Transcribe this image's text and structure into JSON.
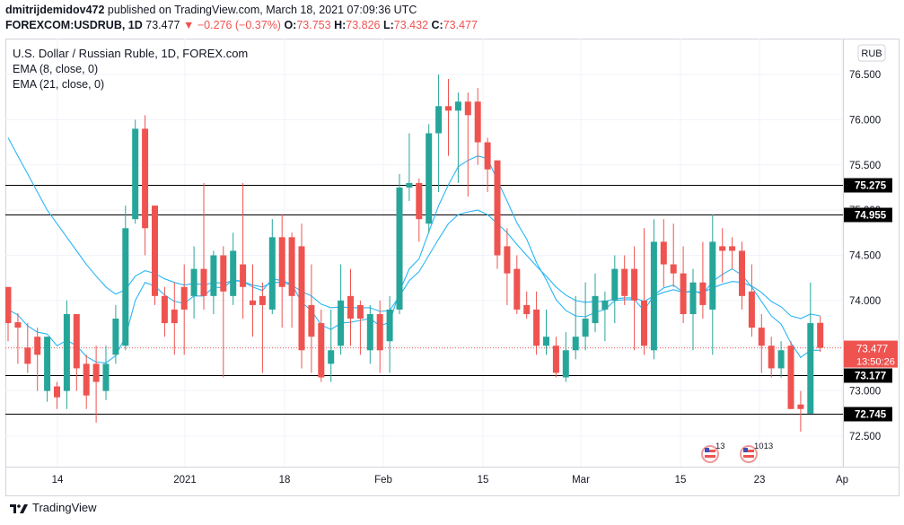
{
  "header": {
    "line1_user": "dmitrijdemidov472",
    "line1_rest": " published on TradingView.com, March 18, 2021 07:09:36 UTC",
    "symbol": "FOREXCOM:USDRUB, 1D",
    "last": "73.477",
    "change": "▼ −0.276 (−0.37%)",
    "o_label": "O:",
    "o_val": "73.753",
    "h_label": "H:",
    "h_val": "73.826",
    "l_label": "L:",
    "l_val": "73.432",
    "c_label": "C:",
    "c_val": "73.477"
  },
  "legend": {
    "title": "U.S. Dollar / Russian Ruble, 1D, FOREX.com",
    "ema8": "EMA (8, close, 0)",
    "ema21": "EMA (21, close, 0)"
  },
  "currency_badge": "RUB",
  "footer": {
    "brand": "TradingView"
  },
  "colors": {
    "up": "#26a69a",
    "down": "#ef5350",
    "ema": "#29b6f6",
    "hline": "#000000"
  },
  "chart_data": {
    "type": "candlestick",
    "title": "U.S. Dollar / Russian Ruble, 1D, FOREX.com",
    "y_ticks": [
      "72.500",
      "73.000",
      "73.500",
      "74.000",
      "74.500",
      "75.000",
      "75.500",
      "76.000",
      "76.500"
    ],
    "x_ticks": [
      "14",
      "2021",
      "18",
      "Feb",
      "15",
      "Mar",
      "15",
      "23",
      "Ap"
    ],
    "ylim": [
      72.0,
      76.85
    ],
    "horizontal_levels": [
      "75.275",
      "74.955",
      "73.177",
      "72.745"
    ],
    "last_price_label": "73.477",
    "countdown_label": "13:50:26",
    "events": [
      {
        "label": "13"
      },
      {
        "label": "1013"
      }
    ],
    "candles": [
      [
        74.15,
        73.75,
        74.15,
        73.55
      ],
      [
        73.76,
        73.7,
        73.86,
        73.3
      ],
      [
        73.48,
        73.3,
        73.75,
        73.2
      ],
      [
        73.6,
        73.4,
        73.7,
        73.0
      ],
      [
        73.0,
        73.6,
        73.6,
        72.88
      ],
      [
        73.05,
        72.93,
        73.1,
        72.8
      ],
      [
        73.0,
        73.85,
        74.0,
        72.8
      ],
      [
        73.85,
        73.25,
        73.85,
        73.0
      ],
      [
        73.3,
        72.95,
        73.4,
        72.8
      ],
      [
        73.3,
        73.1,
        73.5,
        72.65
      ],
      [
        73.0,
        73.3,
        73.5,
        72.9
      ],
      [
        73.4,
        73.8,
        73.95,
        73.3
      ],
      [
        73.5,
        74.8,
        75.05,
        73.45
      ],
      [
        74.9,
        75.9,
        76.0,
        74.85
      ],
      [
        75.9,
        74.8,
        76.05,
        74.5
      ],
      [
        75.05,
        74.05,
        75.05,
        73.95
      ],
      [
        74.05,
        73.75,
        74.15,
        73.6
      ],
      [
        73.9,
        73.75,
        74.2,
        73.4
      ],
      [
        74.15,
        73.9,
        74.4,
        73.4
      ],
      [
        74.05,
        74.35,
        74.6,
        73.8
      ],
      [
        74.35,
        74.05,
        75.3,
        73.9
      ],
      [
        74.05,
        74.5,
        74.55,
        73.85
      ],
      [
        74.5,
        74.1,
        74.6,
        73.15
      ],
      [
        74.05,
        74.55,
        74.75,
        73.95
      ],
      [
        74.4,
        74.15,
        75.3,
        73.8
      ],
      [
        74.0,
        73.95,
        74.4,
        73.6
      ],
      [
        74.05,
        73.95,
        74.2,
        73.2
      ],
      [
        73.9,
        74.7,
        74.9,
        73.85
      ],
      [
        74.7,
        74.15,
        74.95,
        73.7
      ],
      [
        74.7,
        74.05,
        74.75,
        73.7
      ],
      [
        74.6,
        73.45,
        74.85,
        73.25
      ],
      [
        73.95,
        73.6,
        74.4,
        73.2
      ],
      [
        73.75,
        73.15,
        73.9,
        73.1
      ],
      [
        73.3,
        73.45,
        73.9,
        73.1
      ],
      [
        73.5,
        74.0,
        74.4,
        73.4
      ],
      [
        74.05,
        73.8,
        74.35,
        73.5
      ],
      [
        73.95,
        73.8,
        74.0,
        73.4
      ],
      [
        73.45,
        73.85,
        73.95,
        73.3
      ],
      [
        73.85,
        73.45,
        74.0,
        73.2
      ],
      [
        73.55,
        73.9,
        74.05,
        73.2
      ],
      [
        73.9,
        75.25,
        75.4,
        73.85
      ],
      [
        75.25,
        75.3,
        75.85,
        75.1
      ],
      [
        75.3,
        74.9,
        75.35,
        74.65
      ],
      [
        74.85,
        75.85,
        75.95,
        74.75
      ],
      [
        75.85,
        76.15,
        76.5,
        75.2
      ],
      [
        76.15,
        76.1,
        76.45,
        75.6
      ],
      [
        76.1,
        76.2,
        76.3,
        75.3
      ],
      [
        76.2,
        76.05,
        76.3,
        75.15
      ],
      [
        76.2,
        75.75,
        76.35,
        75.5
      ],
      [
        75.75,
        75.45,
        75.8,
        75.2
      ],
      [
        75.55,
        74.5,
        75.55,
        74.35
      ],
      [
        74.6,
        74.3,
        74.8,
        73.95
      ],
      [
        74.35,
        73.9,
        74.5,
        73.85
      ],
      [
        73.95,
        73.85,
        74.1,
        73.8
      ],
      [
        73.9,
        73.5,
        74.1,
        73.4
      ],
      [
        73.5,
        73.6,
        73.9,
        73.4
      ],
      [
        73.5,
        73.2,
        73.6,
        73.15
      ],
      [
        73.15,
        73.45,
        73.65,
        73.1
      ],
      [
        73.45,
        73.6,
        74.05,
        73.35
      ],
      [
        73.6,
        73.8,
        74.2,
        73.45
      ],
      [
        73.75,
        74.05,
        74.3,
        73.65
      ],
      [
        73.9,
        74.0,
        74.1,
        73.55
      ],
      [
        74.0,
        74.35,
        74.5,
        73.75
      ],
      [
        74.35,
        74.05,
        74.5,
        73.95
      ],
      [
        74.35,
        74.0,
        74.6,
        73.45
      ],
      [
        74.0,
        73.5,
        74.8,
        73.4
      ],
      [
        73.45,
        74.65,
        74.9,
        73.35
      ],
      [
        74.65,
        74.4,
        74.9,
        74.15
      ],
      [
        74.4,
        74.3,
        74.85,
        74.15
      ],
      [
        74.3,
        73.85,
        74.6,
        73.75
      ],
      [
        73.85,
        74.2,
        74.35,
        73.45
      ],
      [
        74.2,
        73.95,
        74.65,
        73.8
      ],
      [
        73.9,
        74.65,
        74.95,
        73.4
      ],
      [
        74.6,
        74.55,
        74.8,
        74.2
      ],
      [
        74.6,
        74.55,
        74.7,
        74.35
      ],
      [
        74.55,
        74.05,
        74.65,
        73.9
      ],
      [
        74.1,
        73.7,
        74.4,
        73.6
      ],
      [
        73.7,
        73.5,
        73.85,
        73.2
      ],
      [
        73.5,
        73.25,
        73.6,
        73.15
      ],
      [
        73.25,
        73.45,
        73.55,
        73.15
      ],
      [
        73.5,
        72.8,
        73.55,
        72.8
      ],
      [
        72.85,
        72.8,
        73.0,
        72.55
      ],
      [
        72.75,
        73.75,
        74.2,
        72.75
      ],
      [
        73.753,
        73.477,
        73.826,
        73.432
      ]
    ],
    "ema8": [
      73.9,
      73.84,
      73.72,
      73.65,
      73.63,
      73.5,
      73.56,
      73.5,
      73.38,
      73.32,
      73.31,
      73.39,
      73.6,
      74.0,
      74.2,
      74.16,
      74.06,
      73.99,
      73.97,
      74.05,
      74.05,
      74.15,
      74.14,
      74.23,
      74.21,
      74.15,
      74.11,
      74.24,
      74.22,
      74.18,
      73.98,
      73.89,
      73.73,
      73.68,
      73.75,
      73.76,
      73.78,
      73.8,
      73.72,
      73.76,
      74.1,
      74.35,
      74.46,
      74.76,
      75.05,
      75.28,
      75.48,
      75.55,
      75.6,
      75.57,
      75.33,
      75.1,
      74.86,
      74.68,
      74.42,
      74.23,
      74.01,
      73.89,
      73.83,
      73.82,
      73.87,
      73.9,
      74.0,
      74.01,
      74.01,
      73.89,
      74.06,
      74.14,
      74.17,
      74.09,
      74.11,
      74.07,
      74.21,
      74.29,
      74.35,
      74.28,
      74.15,
      73.99,
      73.83,
      73.74,
      73.53,
      73.37,
      73.45,
      73.45
    ],
    "ema21": [
      75.8,
      75.6,
      75.4,
      75.2,
      75.0,
      74.85,
      74.7,
      74.55,
      74.4,
      74.27,
      74.15,
      74.07,
      74.12,
      74.27,
      74.33,
      74.3,
      74.24,
      74.2,
      74.17,
      74.19,
      74.17,
      74.2,
      74.19,
      74.22,
      74.21,
      74.17,
      74.15,
      74.2,
      74.2,
      74.17,
      74.1,
      74.05,
      73.96,
      73.92,
      73.93,
      73.92,
      73.92,
      73.92,
      73.88,
      73.89,
      74.05,
      74.22,
      74.32,
      74.5,
      74.68,
      74.85,
      74.95,
      74.98,
      75.0,
      74.95,
      74.85,
      74.75,
      74.62,
      74.5,
      74.38,
      74.27,
      74.15,
      74.06,
      74.0,
      73.98,
      73.99,
      73.99,
      74.02,
      74.03,
      74.03,
      73.99,
      74.05,
      74.09,
      74.12,
      74.09,
      74.1,
      74.09,
      74.14,
      74.18,
      74.21,
      74.2,
      74.16,
      74.09,
      73.99,
      73.93,
      73.83,
      73.8,
      73.85,
      73.83
    ]
  }
}
